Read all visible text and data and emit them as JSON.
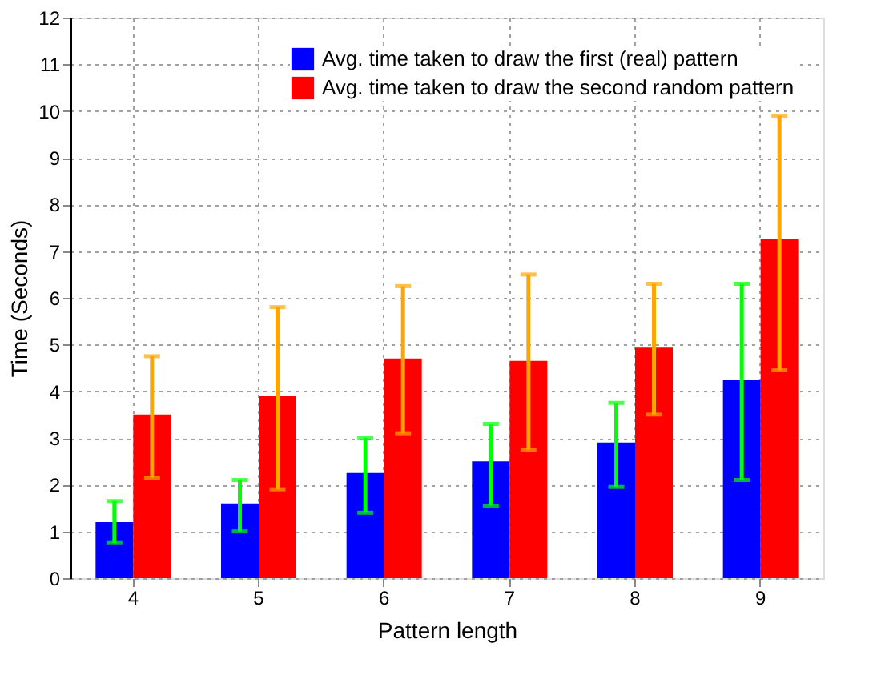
{
  "chart_data": {
    "type": "bar",
    "xlabel": "Pattern length",
    "ylabel": "Time (Seconds)",
    "categories": [
      "4",
      "5",
      "6",
      "7",
      "8",
      "9"
    ],
    "series": [
      {
        "name": "Avg. time taken to draw the first (real) pattern",
        "color": "#0000ff",
        "values": [
          1.2,
          1.6,
          2.25,
          2.5,
          2.9,
          4.25
        ],
        "errors": [
          [
            0.75,
            1.65
          ],
          [
            1.0,
            2.1
          ],
          [
            1.4,
            3.0
          ],
          [
            1.55,
            3.3
          ],
          [
            1.95,
            3.75
          ],
          [
            2.1,
            6.3
          ]
        ]
      },
      {
        "name": "Avg. time taken to draw the second random pattern",
        "color": "#ff0000",
        "values": [
          3.5,
          3.9,
          4.7,
          4.65,
          4.95,
          7.25
        ],
        "errors": [
          [
            2.15,
            4.75
          ],
          [
            1.9,
            5.8
          ],
          [
            3.1,
            6.25
          ],
          [
            2.75,
            6.5
          ],
          [
            3.5,
            6.3
          ],
          [
            4.45,
            9.9
          ]
        ]
      }
    ],
    "ylim": [
      0,
      12
    ],
    "yticks": [
      0,
      1,
      2,
      3,
      4,
      5,
      6,
      7,
      8,
      9,
      10,
      11,
      12
    ],
    "grid": true,
    "legend": "top right"
  }
}
